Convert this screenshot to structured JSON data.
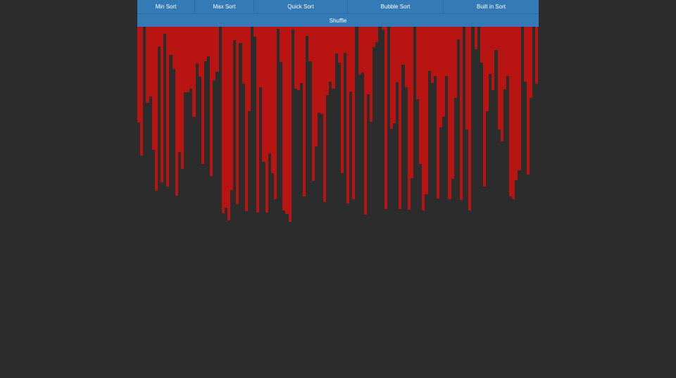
{
  "toolbar": {
    "min_sort_label": "Min Sort",
    "max_sort_label": "Max Sort",
    "quick_sort_label": "Quick Sort",
    "bubble_sort_label": "Bubble Sort",
    "built_in_sort_label": "Built in Sort",
    "shuffle_label": "Shuffle"
  },
  "colors": {
    "background": "#2b2c2b",
    "button": "#337ab7",
    "bar": "#b81412"
  },
  "chart_data": {
    "type": "bar",
    "ylim": [
      0,
      282
    ],
    "values": [
      136,
      183,
      0,
      108,
      99,
      175,
      233,
      28,
      221,
      10,
      227,
      40,
      60,
      240,
      178,
      202,
      93,
      93,
      88,
      128,
      52,
      71,
      195,
      49,
      42,
      212,
      76,
      64,
      0,
      265,
      257,
      275,
      232,
      19,
      252,
      23,
      81,
      262,
      120,
      0,
      14,
      264,
      86,
      192,
      264,
      180,
      208,
      245,
      3,
      50,
      261,
      266,
      277,
      4,
      88,
      90,
      80,
      241,
      13,
      49,
      219,
      170,
      122,
      124,
      249,
      97,
      78,
      88,
      38,
      51,
      208,
      37,
      251,
      92,
      245,
      0,
      68,
      65,
      267,
      96,
      135,
      29,
      22,
      0,
      4,
      259,
      0,
      145,
      137,
      79,
      259,
      54,
      86,
      260,
      215,
      0,
      103,
      195,
      261,
      238,
      63,
      80,
      70,
      244,
      143,
      128,
      70,
      245,
      216,
      101,
      18,
      246,
      0,
      146,
      261,
      0,
      32,
      0,
      51,
      227,
      120,
      67,
      90,
      33,
      146,
      163,
      89,
      70,
      241,
      245,
      218,
      204,
      0,
      78,
      210,
      101,
      0,
      81
    ]
  }
}
